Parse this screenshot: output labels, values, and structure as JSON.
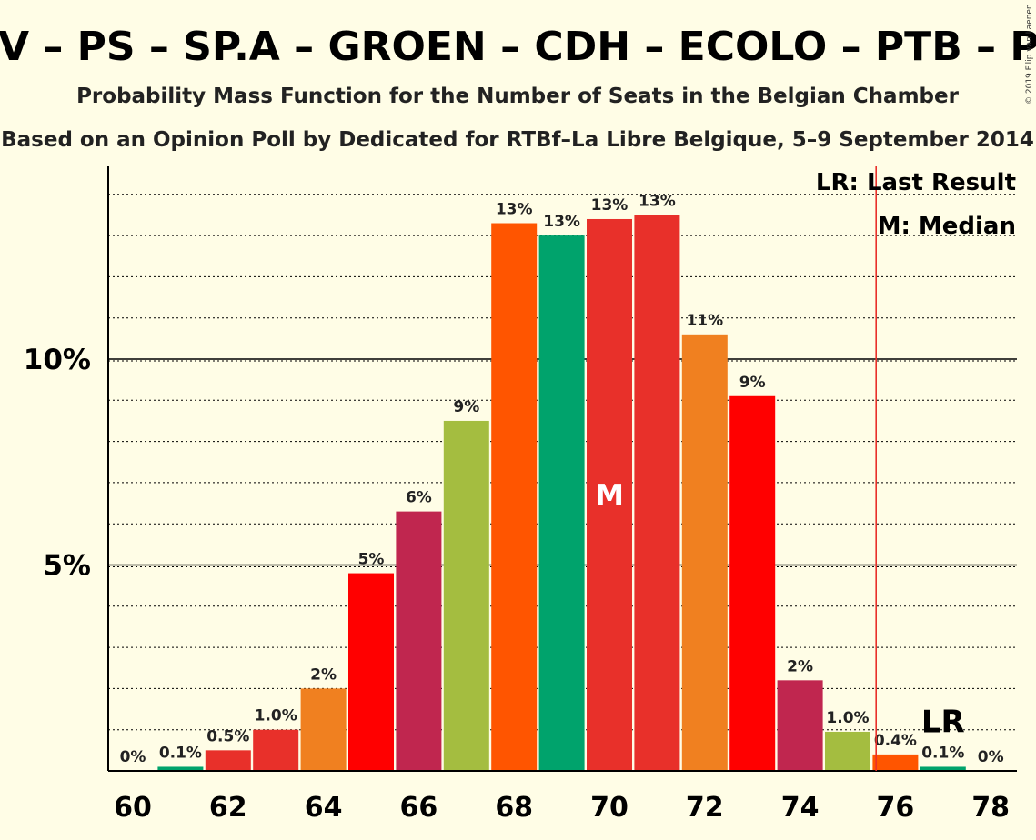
{
  "title": "CD&V – PS – SP.A – GROEN – CDH – ECOLO – PTB – PVDA",
  "subtitle1": "Probability Mass Function for the Number of Seats in the Belgian Chamber",
  "subtitle2": "Based on an Opinion Poll by Dedicated for RTBf–La Libre Belgique, 5–9 September 2014",
  "copyright": "© 2019 Filip van Laenen",
  "legend": {
    "lr": "LR: Last Result",
    "median": "M: Median"
  },
  "markers": {
    "median": "M",
    "last_result": "LR"
  },
  "chart_data": {
    "type": "bar",
    "x": [
      60,
      61,
      62,
      63,
      64,
      65,
      66,
      67,
      68,
      69,
      70,
      71,
      72,
      73,
      74,
      75,
      76,
      77,
      78
    ],
    "values": [
      0,
      0.1,
      0.5,
      1.0,
      2.0,
      4.8,
      6.3,
      8.5,
      13.3,
      13.0,
      13.4,
      13.5,
      10.6,
      9.1,
      2.2,
      0.95,
      0.4,
      0.1,
      0
    ],
    "labels": [
      "0%",
      "0.1%",
      "0.5%",
      "1.0%",
      "2%",
      "5%",
      "6%",
      "9%",
      "13%",
      "13%",
      "13%",
      "13%",
      "11%",
      "9%",
      "2%",
      "1.0%",
      "0.4%",
      "0.1%",
      "0%"
    ],
    "colors": [
      "#00A36C",
      "#00A36C",
      "#E8302A",
      "#E8302A",
      "#F08020",
      "#FF0000",
      "#C0264F",
      "#A4BD40",
      "#FF5500",
      "#00A36C",
      "#E8302A",
      "#E8302A",
      "#F08020",
      "#FF0000",
      "#C0264F",
      "#A4BD40",
      "#FF5500",
      "#00A36C",
      "#00A36C"
    ],
    "xticks": [
      60,
      62,
      64,
      66,
      68,
      70,
      72,
      74,
      76,
      78
    ],
    "xtick_labels": [
      "60",
      "62",
      "64",
      "66",
      "68",
      "70",
      "72",
      "74",
      "76",
      "78"
    ],
    "yticks": [
      5,
      10
    ],
    "ytick_labels": [
      "5%",
      "10%"
    ],
    "ylim": [
      0,
      14.7
    ],
    "minor_grid_step": 1,
    "median_seat": 70,
    "last_result_seat": 75.5,
    "lr_label_seat": 77,
    "lr_label_value": 1.2,
    "grid": true,
    "legend_position": "top-right"
  }
}
